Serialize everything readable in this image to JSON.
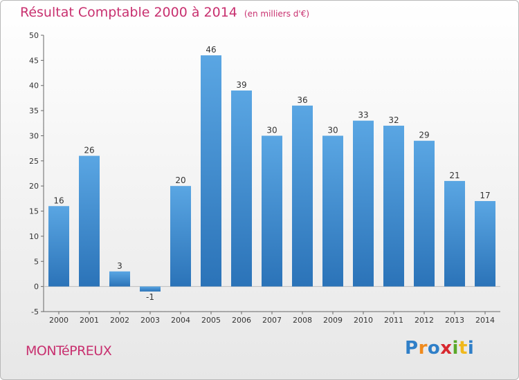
{
  "chart_data": {
    "type": "bar",
    "title": "Résultat Comptable 2000 à 2014",
    "subtitle": "(en milliers d'€)",
    "categories": [
      "2000",
      "2001",
      "2002",
      "2003",
      "2004",
      "2005",
      "2006",
      "2007",
      "2008",
      "2009",
      "2010",
      "2011",
      "2012",
      "2013",
      "2014"
    ],
    "values": [
      16,
      26,
      3,
      -1,
      20,
      46,
      39,
      30,
      36,
      30,
      33,
      32,
      29,
      21,
      17
    ],
    "value_labels": [
      "16",
      "26",
      "3",
      "-1",
      "20",
      "46",
      "39",
      "30",
      "36",
      "30",
      "33",
      "32",
      "29",
      "21",
      "17"
    ],
    "ylim": [
      -5,
      50
    ],
    "yticks": [
      -5,
      0,
      5,
      10,
      15,
      20,
      25,
      30,
      35,
      40,
      45,
      50
    ],
    "xlabel": "",
    "ylabel": "",
    "grid": false,
    "bar_color": "#4a96d6",
    "bar_color_dark": "#2b73b8"
  },
  "footer": {
    "commune": "MONTéPREUX"
  },
  "logo": {
    "letters": [
      {
        "char": "P",
        "color": "#2f7fc8"
      },
      {
        "char": "r",
        "color": "#f08a1c"
      },
      {
        "char": "o",
        "color": "#2f7fc8"
      },
      {
        "char": "x",
        "color": "#d7282f"
      },
      {
        "char": "i",
        "color": "#5aa829"
      },
      {
        "char": "t",
        "color": "#f0b81c"
      },
      {
        "char": "i",
        "color": "#2f7fc8"
      }
    ]
  }
}
